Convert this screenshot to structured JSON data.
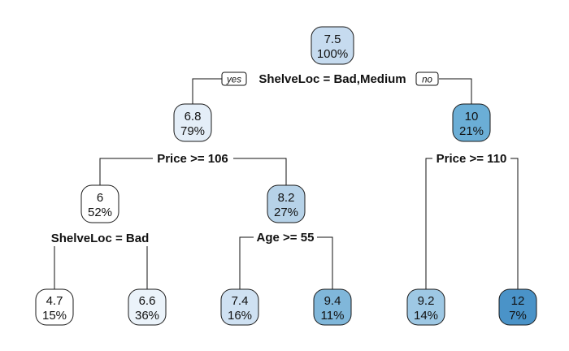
{
  "tree": {
    "branch_labels": {
      "yes": "yes",
      "no": "no"
    },
    "splits": {
      "root": "ShelveLoc = Bad,Medium",
      "n2": "Price >= 106",
      "n3": "Price >= 110",
      "n4": "ShelveLoc = Bad",
      "n5": "Age >= 55"
    },
    "nodes": {
      "root": {
        "value": "7.5",
        "pct": "100%",
        "fill": "#c6dbef"
      },
      "n2": {
        "value": "6.8",
        "pct": "79%",
        "fill": "#e4eef8"
      },
      "n3": {
        "value": "10",
        "pct": "21%",
        "fill": "#6baed6"
      },
      "n4": {
        "value": "6",
        "pct": "52%",
        "fill": "#ffffff"
      },
      "n5": {
        "value": "8.2",
        "pct": "27%",
        "fill": "#b6d2e8"
      },
      "l1": {
        "value": "4.7",
        "pct": "15%",
        "fill": "#ffffff"
      },
      "l2": {
        "value": "6.6",
        "pct": "36%",
        "fill": "#ebf3fa"
      },
      "l3": {
        "value": "7.4",
        "pct": "16%",
        "fill": "#cfe1f2"
      },
      "l4": {
        "value": "9.4",
        "pct": "11%",
        "fill": "#80b7da"
      },
      "l5": {
        "value": "9.2",
        "pct": "14%",
        "fill": "#9ec8e4"
      },
      "l6": {
        "value": "12",
        "pct": "7%",
        "fill": "#4a93c8"
      }
    }
  }
}
